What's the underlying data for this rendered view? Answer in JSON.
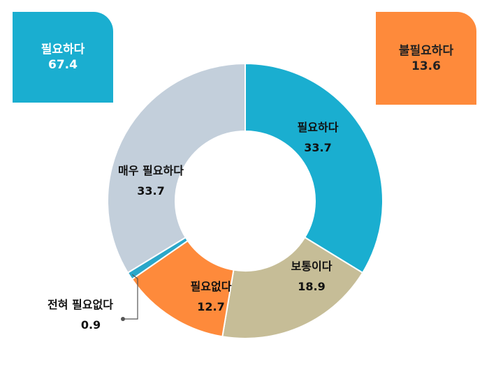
{
  "summary": {
    "positive": {
      "label": "필요하다",
      "value": "67.4",
      "color": "#1aaed0"
    },
    "negative": {
      "label": "불필요하다",
      "value": "13.6",
      "color": "#fe8a3b"
    }
  },
  "chart_data": {
    "type": "pie",
    "donut": true,
    "start": "12 o'clock",
    "direction": "clockwise",
    "categories": [
      "필요하다",
      "보통이다",
      "필요없다",
      "전혀 필요없다",
      "매우 필요하다"
    ],
    "values": [
      33.7,
      18.9,
      12.7,
      0.9,
      33.7
    ],
    "value_labels": [
      "33.7",
      "18.9",
      "12.7",
      "0.9",
      "33.7"
    ],
    "colors": [
      "#1aaed0",
      "#c6bd97",
      "#fe8a3b",
      "#2aa7c9",
      "#c3cfdb"
    ],
    "legend": "none"
  }
}
